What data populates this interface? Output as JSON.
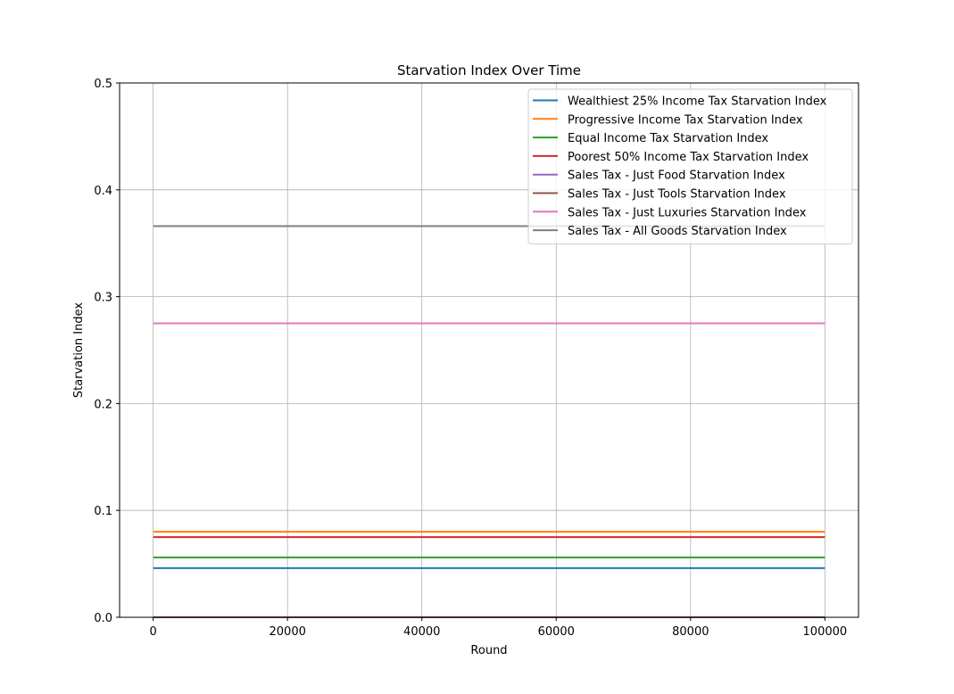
{
  "chart_data": {
    "type": "line",
    "title": "Starvation Index Over Time",
    "xlabel": "Round",
    "ylabel": "Starvation Index",
    "xlim": [
      -5000,
      105000
    ],
    "ylim": [
      0,
      0.5
    ],
    "x_ticks": [
      0,
      20000,
      40000,
      60000,
      80000,
      100000
    ],
    "y_ticks": [
      0.0,
      0.1,
      0.2,
      0.3,
      0.4,
      0.5
    ],
    "x_tick_labels": [
      "0",
      "20000",
      "40000",
      "60000",
      "80000",
      "100000"
    ],
    "y_tick_labels": [
      "0.0",
      "0.1",
      "0.2",
      "0.3",
      "0.4",
      "0.5"
    ],
    "grid": true,
    "legend_position": "top-right",
    "x": [
      0,
      100000
    ],
    "series": [
      {
        "name": "Wealthiest 25% Income Tax Starvation Index",
        "color": "#1f77b4",
        "values": [
          0.046,
          0.046
        ]
      },
      {
        "name": "Progressive Income Tax Starvation Index",
        "color": "#ff7f0e",
        "values": [
          0.08,
          0.08
        ]
      },
      {
        "name": "Equal Income Tax Starvation Index",
        "color": "#2ca02c",
        "values": [
          0.056,
          0.056
        ]
      },
      {
        "name": "Poorest 50% Income Tax Starvation Index",
        "color": "#d62728",
        "values": [
          0.075,
          0.075
        ]
      },
      {
        "name": "Sales Tax - Just Food Starvation Index",
        "color": "#9467bd",
        "values": [
          0.0,
          0.0
        ]
      },
      {
        "name": "Sales Tax - Just Tools Starvation Index",
        "color": "#8c564b",
        "values": [
          0.0,
          0.0
        ]
      },
      {
        "name": "Sales Tax - Just Luxuries Starvation Index",
        "color": "#e377c2",
        "values": [
          0.275,
          0.275
        ]
      },
      {
        "name": "Sales Tax - All Goods Starvation Index",
        "color": "#7f7f7f",
        "values": [
          0.366,
          0.366
        ]
      }
    ]
  }
}
